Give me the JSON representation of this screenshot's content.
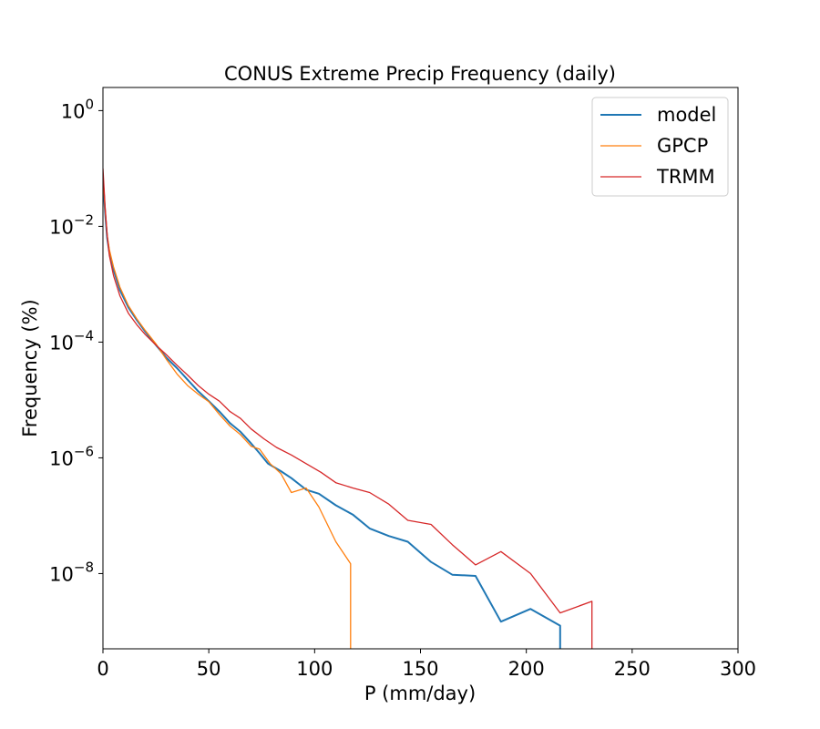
{
  "chart_data": {
    "type": "line",
    "title": "CONUS Extreme Precip Frequency (daily)",
    "xlabel": "P (mm/day)",
    "ylabel": "Frequency (%)",
    "xlim": [
      0,
      300
    ],
    "ylim_log10": [
      -9.3,
      0.4
    ],
    "y_scale": "log",
    "xticks": [
      0,
      50,
      100,
      150,
      200,
      250,
      300
    ],
    "yticks": [
      {
        "base": "10",
        "exp": "0",
        "log10": 0
      },
      {
        "base": "10",
        "exp": "−2",
        "log10": -2
      },
      {
        "base": "10",
        "exp": "−4",
        "log10": -4
      },
      {
        "base": "10",
        "exp": "−6",
        "log10": -6
      },
      {
        "base": "10",
        "exp": "−8",
        "log10": -8
      }
    ],
    "legend_position": "top-right",
    "series": [
      {
        "name": "model",
        "color": "#1f77b4",
        "points": [
          [
            0,
            -1.2
          ],
          [
            1,
            -1.75
          ],
          [
            2,
            -2.2
          ],
          [
            3,
            -2.45
          ],
          [
            5,
            -2.75
          ],
          [
            8,
            -3.1
          ],
          [
            12,
            -3.4
          ],
          [
            16,
            -3.62
          ],
          [
            20,
            -3.82
          ],
          [
            25,
            -4.05
          ],
          [
            30,
            -4.27
          ],
          [
            35,
            -4.45
          ],
          [
            40,
            -4.65
          ],
          [
            45,
            -4.85
          ],
          [
            50,
            -5.02
          ],
          [
            55,
            -5.2
          ],
          [
            60,
            -5.4
          ],
          [
            65,
            -5.55
          ],
          [
            70,
            -5.75
          ],
          [
            74,
            -5.92
          ],
          [
            78,
            -6.1
          ],
          [
            84,
            -6.23
          ],
          [
            89,
            -6.35
          ],
          [
            96,
            -6.55
          ],
          [
            102,
            -6.62
          ],
          [
            110,
            -6.82
          ],
          [
            118,
            -6.98
          ],
          [
            126,
            -7.22
          ],
          [
            135,
            -7.35
          ],
          [
            144,
            -7.45
          ],
          [
            155,
            -7.8
          ],
          [
            165,
            -8.02
          ],
          [
            176,
            -8.04
          ],
          [
            188,
            -8.83
          ],
          [
            202,
            -8.61
          ],
          [
            216,
            -8.9
          ],
          [
            216,
            -9.4
          ]
        ]
      },
      {
        "name": "GPCP",
        "color": "#ff7f0e",
        "points": [
          [
            0,
            -1.1
          ],
          [
            1,
            -1.7
          ],
          [
            2,
            -2.15
          ],
          [
            3,
            -2.4
          ],
          [
            5,
            -2.7
          ],
          [
            8,
            -3.05
          ],
          [
            12,
            -3.37
          ],
          [
            16,
            -3.6
          ],
          [
            20,
            -3.8
          ],
          [
            25,
            -4.03
          ],
          [
            30,
            -4.3
          ],
          [
            35,
            -4.55
          ],
          [
            40,
            -4.75
          ],
          [
            45,
            -4.9
          ],
          [
            50,
            -5.03
          ],
          [
            55,
            -5.25
          ],
          [
            60,
            -5.45
          ],
          [
            65,
            -5.6
          ],
          [
            70,
            -5.8
          ],
          [
            74,
            -5.85
          ],
          [
            79,
            -6.1
          ],
          [
            84,
            -6.27
          ],
          [
            89,
            -6.6
          ],
          [
            96,
            -6.52
          ],
          [
            102,
            -6.85
          ],
          [
            110,
            -7.45
          ],
          [
            117,
            -7.83
          ],
          [
            117,
            -9.4
          ]
        ]
      },
      {
        "name": "TRMM",
        "color": "#d62728",
        "points": [
          [
            0,
            -1.0
          ],
          [
            1,
            -1.65
          ],
          [
            2,
            -2.15
          ],
          [
            3,
            -2.5
          ],
          [
            5,
            -2.85
          ],
          [
            8,
            -3.2
          ],
          [
            12,
            -3.5
          ],
          [
            16,
            -3.7
          ],
          [
            20,
            -3.87
          ],
          [
            25,
            -4.05
          ],
          [
            30,
            -4.22
          ],
          [
            35,
            -4.4
          ],
          [
            40,
            -4.57
          ],
          [
            45,
            -4.75
          ],
          [
            50,
            -4.9
          ],
          [
            55,
            -5.02
          ],
          [
            60,
            -5.2
          ],
          [
            65,
            -5.32
          ],
          [
            70,
            -5.5
          ],
          [
            76,
            -5.67
          ],
          [
            82,
            -5.82
          ],
          [
            89,
            -5.95
          ],
          [
            96,
            -6.1
          ],
          [
            103,
            -6.25
          ],
          [
            110,
            -6.43
          ],
          [
            118,
            -6.52
          ],
          [
            126,
            -6.6
          ],
          [
            135,
            -6.8
          ],
          [
            144,
            -7.08
          ],
          [
            155,
            -7.15
          ],
          [
            165,
            -7.5
          ],
          [
            176,
            -7.85
          ],
          [
            188,
            -7.62
          ],
          [
            202,
            -8.0
          ],
          [
            216,
            -8.68
          ],
          [
            231,
            -8.48
          ],
          [
            231,
            -9.4
          ]
        ]
      }
    ]
  }
}
